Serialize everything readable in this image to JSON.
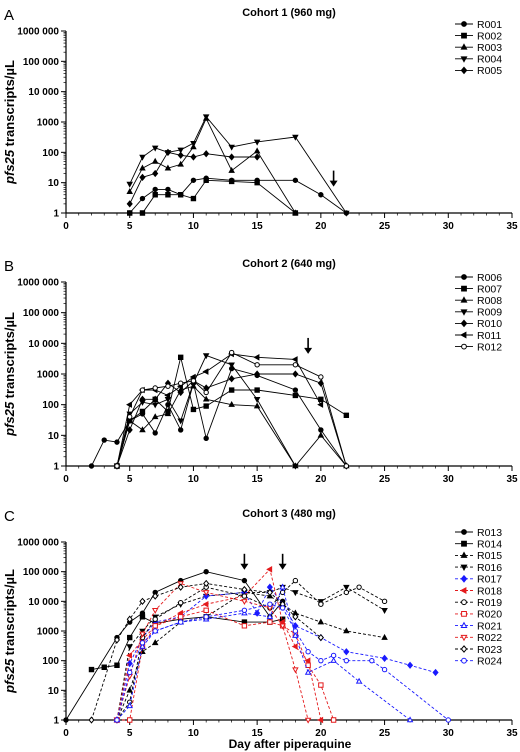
{
  "figure": {
    "xlabel": "Day after piperaquine",
    "ylabel_bold": "pfs25",
    "ylabel_rest": " transcripts/µL"
  },
  "chart_data": [
    {
      "type": "line",
      "panel_label": "A",
      "title": "Cohort 1 (960 mg)",
      "yscale": "log",
      "ylim": [
        1,
        1000000
      ],
      "yticks": [
        "1",
        "10",
        "100",
        "1000",
        "10 000",
        "100 000",
        "1000 000"
      ],
      "xlim": [
        0,
        35
      ],
      "xticks": [
        0,
        5,
        10,
        15,
        20,
        25,
        30,
        35
      ],
      "arrows_at_day": [
        21
      ],
      "series": [
        {
          "name": "R001",
          "marker": "circle",
          "fill": "filled",
          "color": "#000000",
          "dash": false,
          "x": [
            5,
            6,
            7,
            8,
            9,
            10,
            11,
            13,
            15,
            18,
            20,
            22
          ],
          "y": [
            1,
            3,
            6,
            6,
            4,
            12,
            14,
            12,
            12,
            12,
            4,
            1
          ]
        },
        {
          "name": "R002",
          "marker": "square",
          "fill": "filled",
          "color": "#000000",
          "dash": false,
          "x": [
            5,
            6,
            7,
            8,
            9,
            10,
            11,
            13,
            15,
            18
          ],
          "y": [
            1,
            1,
            4,
            4,
            4,
            3,
            12,
            11,
            10,
            1
          ]
        },
        {
          "name": "R003",
          "marker": "triangle-up",
          "fill": "filled",
          "color": "#000000",
          "dash": false,
          "x": [
            5,
            6,
            7,
            8,
            9,
            10,
            11,
            13,
            15,
            18
          ],
          "y": [
            5,
            30,
            50,
            30,
            40,
            150,
            1300,
            25,
            110,
            1
          ]
        },
        {
          "name": "R004",
          "marker": "triangle-down",
          "fill": "filled",
          "color": "#000000",
          "dash": false,
          "x": [
            5,
            6,
            7,
            8,
            9,
            10,
            11,
            13,
            15,
            18,
            22
          ],
          "y": [
            9,
            70,
            140,
            100,
            120,
            200,
            1500,
            150,
            220,
            320,
            1
          ]
        },
        {
          "name": "R005",
          "marker": "diamond",
          "fill": "filled",
          "color": "#000000",
          "dash": false,
          "x": [
            5,
            6,
            7,
            8,
            9,
            10,
            11,
            13,
            15
          ],
          "y": [
            2,
            15,
            20,
            100,
            80,
            70,
            90,
            70,
            70
          ]
        }
      ]
    },
    {
      "type": "line",
      "panel_label": "B",
      "title": "Cohort 2 (640 mg)",
      "yscale": "log",
      "ylim": [
        1,
        1000000
      ],
      "yticks": [
        "1",
        "10",
        "100",
        "1000",
        "10 000",
        "100 000",
        "1000 000"
      ],
      "xlim": [
        0,
        35
      ],
      "xticks": [
        0,
        5,
        10,
        15,
        20,
        25,
        30,
        35
      ],
      "arrows_at_day": [
        19
      ],
      "series": [
        {
          "name": "R006",
          "marker": "circle",
          "fill": "filled",
          "color": "#000000",
          "dash": false,
          "x": [
            2,
            3,
            4,
            5,
            6,
            7,
            8,
            9,
            10,
            11,
            13,
            15,
            18,
            20,
            22
          ],
          "y": [
            1,
            7,
            6,
            30,
            50,
            12,
            100,
            15,
            500,
            8,
            1500,
            900,
            300,
            15,
            1
          ]
        },
        {
          "name": "R007",
          "marker": "square",
          "fill": "filled",
          "color": "#000000",
          "dash": false,
          "x": [
            4,
            5,
            6,
            7,
            8,
            9,
            10,
            11,
            13,
            15,
            18,
            20,
            22
          ],
          "y": [
            1,
            30,
            60,
            150,
            60,
            3500,
            70,
            90,
            300,
            300,
            200,
            150,
            45
          ]
        },
        {
          "name": "R008",
          "marker": "triangle-up",
          "fill": "filled",
          "color": "#000000",
          "dash": false,
          "x": [
            4,
            5,
            6,
            7,
            8,
            9,
            10,
            11,
            13,
            15,
            18,
            20,
            22
          ],
          "y": [
            1,
            30,
            15,
            40,
            50,
            300,
            400,
            150,
            100,
            90,
            1,
            10,
            1
          ]
        },
        {
          "name": "R009",
          "marker": "triangle-down",
          "fill": "filled",
          "color": "#000000",
          "dash": false,
          "x": [
            4,
            5,
            6,
            7,
            8,
            9,
            10,
            11,
            13,
            15,
            18
          ],
          "y": [
            1,
            50,
            120,
            100,
            150,
            30,
            500,
            4000,
            2000,
            150,
            1
          ]
        },
        {
          "name": "R010",
          "marker": "diamond",
          "fill": "filled",
          "color": "#000000",
          "dash": false,
          "x": [
            4,
            5,
            6,
            7,
            8,
            9,
            10,
            11,
            13,
            15,
            18,
            20,
            22
          ],
          "y": [
            1,
            15,
            150,
            150,
            500,
            250,
            600,
            350,
            700,
            1000,
            1000,
            500,
            1
          ]
        },
        {
          "name": "R011",
          "marker": "left-triangle",
          "fill": "filled",
          "color": "#000000",
          "dash": false,
          "x": [
            4,
            5,
            6,
            7,
            8,
            9,
            10,
            11,
            13,
            15,
            18,
            20
          ],
          "y": [
            1,
            100,
            300,
            300,
            200,
            400,
            800,
            1200,
            4500,
            3500,
            3000,
            100
          ]
        },
        {
          "name": "R012",
          "marker": "circle",
          "fill": "open",
          "color": "#000000",
          "dash": false,
          "x": [
            4,
            5,
            6,
            7,
            8,
            9,
            10,
            11,
            13,
            15,
            18,
            20,
            22
          ],
          "y": [
            1,
            40,
            300,
            350,
            400,
            500,
            600,
            250,
            5000,
            2000,
            2000,
            800,
            1
          ]
        }
      ]
    },
    {
      "type": "line",
      "panel_label": "C",
      "title": "Cohort 3 (480 mg)",
      "yscale": "log",
      "ylim": [
        1,
        1000000
      ],
      "yticks": [
        "1",
        "10",
        "100",
        "1000",
        "10 000",
        "100 000",
        "1000 000"
      ],
      "xlim": [
        0,
        35
      ],
      "xticks": [
        0,
        5,
        10,
        15,
        20,
        25,
        30,
        35
      ],
      "arrows_at_day": [
        14,
        17
      ],
      "series": [
        {
          "name": "R013",
          "marker": "circle",
          "fill": "filled",
          "color": "#000000",
          "dash": false,
          "x": [
            0,
            4,
            5,
            6,
            7,
            9,
            11,
            14,
            16,
            17
          ],
          "y": [
            1,
            600,
            2000,
            4000,
            20000,
            50000,
            100000,
            50000,
            3000,
            10000
          ]
        },
        {
          "name": "R014",
          "marker": "square",
          "fill": "filled",
          "color": "#000000",
          "dash": false,
          "x": [
            2,
            3,
            4,
            5,
            6,
            7,
            9,
            11,
            14,
            16,
            17
          ],
          "y": [
            50,
            60,
            70,
            600,
            3000,
            1800,
            2500,
            3000,
            2000,
            2000,
            2500
          ]
        },
        {
          "name": "R015",
          "marker": "triangle-up",
          "fill": "filled",
          "color": "#000000",
          "dash": true,
          "x": [
            4,
            5,
            6,
            7,
            9,
            11,
            14,
            16,
            17,
            18,
            20,
            22,
            25
          ],
          "y": [
            1,
            10,
            200,
            400,
            2000,
            3000,
            20000,
            15000,
            8000,
            4000,
            2000,
            1000,
            600
          ]
        },
        {
          "name": "R016",
          "marker": "triangle-down",
          "fill": "filled",
          "color": "#000000",
          "dash": true,
          "x": [
            4,
            5,
            6,
            7,
            9,
            11,
            14,
            16,
            17,
            18,
            20,
            22,
            25
          ],
          "y": [
            1,
            300,
            1000,
            3000,
            8000,
            15000,
            20000,
            20000,
            30000,
            20000,
            10000,
            30000,
            5000
          ]
        },
        {
          "name": "R017",
          "marker": "diamond",
          "fill": "filled",
          "color": "#1a1aff",
          "dash": true,
          "x": [
            4,
            5,
            6,
            7,
            9,
            11,
            14,
            15,
            16,
            17,
            18,
            20,
            22,
            25,
            27,
            29
          ],
          "y": [
            1,
            80,
            600,
            2000,
            3000,
            15000,
            20000,
            4000,
            30000,
            8000,
            1500,
            600,
            200,
            120,
            70,
            40
          ]
        },
        {
          "name": "R018",
          "marker": "left-triangle",
          "fill": "filled",
          "color": "#e41a1c",
          "dash": true,
          "x": [
            4,
            5,
            6,
            7,
            9,
            11,
            14,
            16,
            17,
            18,
            19,
            20
          ],
          "y": [
            1,
            150,
            500,
            1500,
            4000,
            8000,
            15000,
            120000,
            2000,
            300,
            100,
            1
          ]
        },
        {
          "name": "R019",
          "marker": "circle",
          "fill": "open",
          "color": "#000000",
          "dash": true,
          "x": [
            4,
            5,
            6,
            7,
            9,
            11,
            14,
            16,
            17,
            18,
            20,
            22,
            23,
            25
          ],
          "y": [
            1,
            4,
            600,
            2500,
            9000,
            30000,
            15000,
            6000,
            20000,
            50000,
            8000,
            20000,
            30000,
            10000
          ]
        },
        {
          "name": "R020",
          "marker": "square",
          "fill": "open",
          "color": "#e41a1c",
          "dash": true,
          "x": [
            4,
            5,
            6,
            7,
            9,
            11,
            14,
            16,
            17,
            18,
            19,
            20,
            21
          ],
          "y": [
            1,
            1,
            300,
            1500,
            3000,
            5000,
            1500,
            2000,
            1500,
            800,
            70,
            15,
            1
          ]
        },
        {
          "name": "R021",
          "marker": "triangle-up",
          "fill": "open",
          "color": "#1a1aff",
          "dash": true,
          "x": [
            4,
            5,
            6,
            7,
            9,
            11,
            14,
            16,
            17,
            18,
            19,
            21,
            23,
            27
          ],
          "y": [
            1,
            3,
            300,
            1000,
            2000,
            2500,
            4000,
            3000,
            30000,
            700,
            40,
            100,
            20,
            1
          ]
        },
        {
          "name": "R022",
          "marker": "triangle-down",
          "fill": "open",
          "color": "#e41a1c",
          "dash": true,
          "x": [
            4,
            5,
            6,
            7,
            9,
            11,
            14,
            16,
            17,
            18,
            19
          ],
          "y": [
            1,
            30,
            800,
            5000,
            40000,
            20000,
            10000,
            6000,
            1500,
            50,
            1
          ]
        },
        {
          "name": "R023",
          "marker": "diamond",
          "fill": "open",
          "color": "#000000",
          "dash": true,
          "x": [
            2,
            4,
            5,
            6,
            7,
            9,
            11,
            14,
            16,
            17,
            18,
            20
          ],
          "y": [
            1,
            500,
            2500,
            10000,
            15000,
            30000,
            40000,
            25000,
            20000,
            8000,
            3000,
            600
          ]
        },
        {
          "name": "R024",
          "marker": "circle",
          "fill": "open",
          "color": "#1a1aff",
          "dash": true,
          "x": [
            4,
            5,
            6,
            7,
            9,
            11,
            14,
            16,
            17,
            18,
            19,
            20,
            21,
            22,
            24,
            25,
            30
          ],
          "y": [
            1,
            40,
            400,
            1000,
            2000,
            3000,
            5000,
            8000,
            6000,
            1000,
            200,
            100,
            150,
            100,
            100,
            50,
            1
          ]
        }
      ]
    }
  ]
}
